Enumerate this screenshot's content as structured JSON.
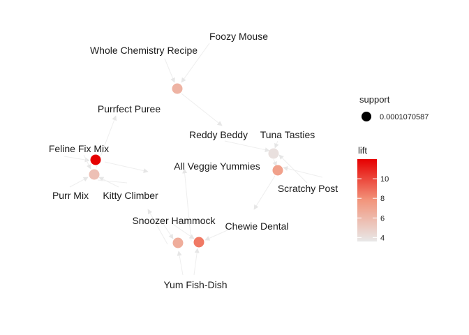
{
  "graph": {
    "item_labels": [
      {
        "id": "foozy-mouse",
        "text": "Foozy Mouse"
      },
      {
        "id": "whole-chemistry-recipe",
        "text": "Whole Chemistry Recipe"
      },
      {
        "id": "purrfect-puree",
        "text": "Purrfect Puree"
      },
      {
        "id": "reddy-beddy",
        "text": "Reddy Beddy"
      },
      {
        "id": "tuna-tasties",
        "text": "Tuna Tasties"
      },
      {
        "id": "feline-fix-mix",
        "text": "Feline Fix Mix"
      },
      {
        "id": "all-veggie-yummies",
        "text": "All Veggie Yummies"
      },
      {
        "id": "scratchy-post",
        "text": "Scratchy Post"
      },
      {
        "id": "purr-mix",
        "text": "Purr Mix"
      },
      {
        "id": "kitty-climber",
        "text": "Kitty Climber"
      },
      {
        "id": "snoozer-hammock",
        "text": "Snoozer Hammock"
      },
      {
        "id": "chewie-dental",
        "text": "Chewie Dental"
      },
      {
        "id": "yum-fish-dish",
        "text": "Yum Fish-Dish"
      }
    ],
    "rule_nodes": [
      {
        "id": "rule-1",
        "lift": 6.3
      },
      {
        "id": "rule-2",
        "lift": 4.0
      },
      {
        "id": "rule-3",
        "lift": 7.2
      },
      {
        "id": "rule-4",
        "lift": 12.0
      },
      {
        "id": "rule-5",
        "lift": 5.6
      },
      {
        "id": "rule-6",
        "lift": 6.6
      },
      {
        "id": "rule-7",
        "lift": 8.6
      }
    ],
    "edge_color": "#eeeeee",
    "low_color": "#e8e8e8",
    "high_color": "#e60000"
  },
  "legend": {
    "size_title": "support",
    "size_value": "0.0001070587",
    "color_title": "lift",
    "color_ticks": [
      "10",
      "8",
      "6",
      "4"
    ],
    "lift_range": [
      3.6,
      12.0
    ],
    "tick_values": [
      10,
      8,
      6,
      4
    ]
  }
}
